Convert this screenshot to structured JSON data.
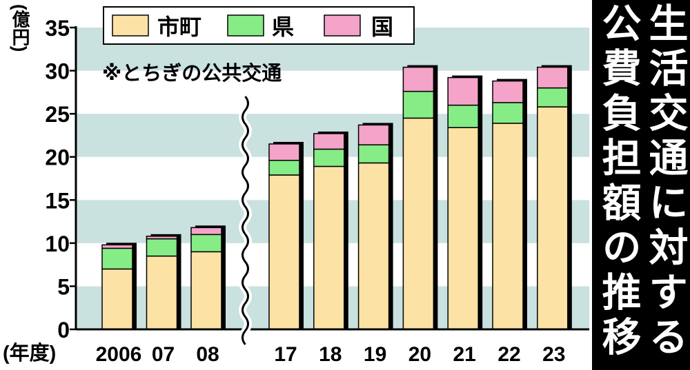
{
  "chart_data": {
    "type": "bar",
    "stacked": true,
    "title": "生活交通に対する公費負担額の推移",
    "ylabel": "(億円)",
    "xlabel": "(年度)",
    "note": "※とちぎの公共交通",
    "categories": [
      "2006",
      "07",
      "08",
      "17",
      "18",
      "19",
      "20",
      "21",
      "22",
      "23"
    ],
    "series": [
      {
        "name": "市町",
        "color": "#fde2a6",
        "values": [
          7.0,
          8.5,
          9.0,
          17.9,
          18.9,
          19.3,
          24.5,
          23.4,
          23.9,
          25.8
        ]
      },
      {
        "name": "県",
        "color": "#86ec86",
        "values": [
          2.4,
          2.0,
          2.0,
          1.7,
          2.0,
          2.1,
          3.1,
          2.6,
          2.4,
          2.2
        ]
      },
      {
        "name": "国",
        "color": "#f4a3c9",
        "values": [
          0.4,
          0.3,
          0.8,
          1.9,
          1.8,
          2.3,
          2.8,
          3.2,
          2.5,
          2.4
        ]
      }
    ],
    "ylim": [
      0,
      35
    ],
    "yticks": [
      0,
      5,
      10,
      15,
      20,
      25,
      30,
      35
    ],
    "axis_break_index": 3,
    "grid": false,
    "stripe_color": "#c9e1df",
    "shadow_color": "#000000",
    "legend_position": "top-left"
  }
}
